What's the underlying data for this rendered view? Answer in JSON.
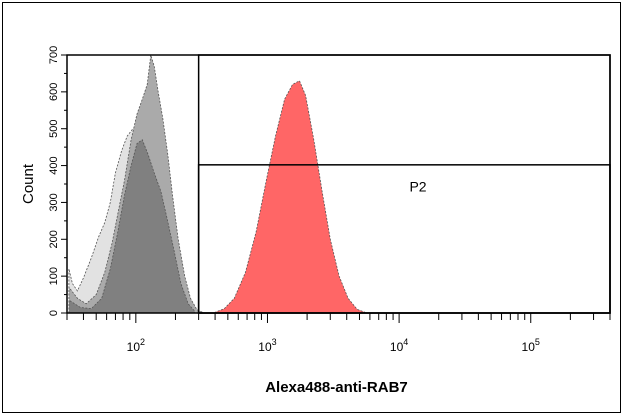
{
  "chart_data": {
    "type": "area",
    "title": "",
    "xlabel": "Alexa488-anti-RAB7",
    "ylabel": "Count",
    "x_scale": "log",
    "xlim": [
      30,
      400000
    ],
    "ylim": [
      0,
      700
    ],
    "x_ticks": [
      {
        "base": "10",
        "exp": "2",
        "value": 100
      },
      {
        "base": "10",
        "exp": "3",
        "value": 1000
      },
      {
        "base": "10",
        "exp": "4",
        "value": 10000
      },
      {
        "base": "10",
        "exp": "5",
        "value": 100000
      }
    ],
    "y_ticks": [
      {
        "label": "0",
        "value": 0
      },
      {
        "label": "100",
        "value": 100
      },
      {
        "label": "200",
        "value": 200
      },
      {
        "label": "300",
        "value": 300
      },
      {
        "label": "400",
        "value": 400
      },
      {
        "label": "500",
        "value": 500
      },
      {
        "label": "600",
        "value": 600
      },
      {
        "label": "700",
        "value": 700
      }
    ],
    "series": [
      {
        "color": "#e2e2e2",
        "points": [
          [
            31,
            120
          ],
          [
            33,
            80
          ],
          [
            36,
            60
          ],
          [
            40,
            95
          ],
          [
            46,
            150
          ],
          [
            52,
            205
          ],
          [
            58,
            245
          ],
          [
            64,
            300
          ],
          [
            70,
            380
          ],
          [
            78,
            440
          ],
          [
            86,
            480
          ],
          [
            95,
            500
          ],
          [
            105,
            505
          ],
          [
            115,
            470
          ],
          [
            125,
            420
          ],
          [
            140,
            360
          ],
          [
            155,
            300
          ],
          [
            170,
            240
          ],
          [
            190,
            170
          ],
          [
            215,
            95
          ],
          [
            240,
            45
          ],
          [
            270,
            15
          ],
          [
            300,
            3
          ]
        ]
      },
      {
        "color": "#aaaaaa",
        "points": [
          [
            31,
            70
          ],
          [
            36,
            40
          ],
          [
            42,
            25
          ],
          [
            50,
            50
          ],
          [
            58,
            110
          ],
          [
            66,
            190
          ],
          [
            74,
            280
          ],
          [
            82,
            360
          ],
          [
            92,
            470
          ],
          [
            102,
            540
          ],
          [
            112,
            580
          ],
          [
            122,
            620
          ],
          [
            130,
            700
          ],
          [
            138,
            670
          ],
          [
            148,
            600
          ],
          [
            160,
            530
          ],
          [
            175,
            430
          ],
          [
            190,
            320
          ],
          [
            210,
            200
          ],
          [
            235,
            100
          ],
          [
            260,
            40
          ],
          [
            290,
            10
          ],
          [
            320,
            2
          ]
        ]
      },
      {
        "color": "#808080",
        "points": [
          [
            31,
            35
          ],
          [
            38,
            15
          ],
          [
            46,
            12
          ],
          [
            55,
            40
          ],
          [
            64,
            120
          ],
          [
            73,
            220
          ],
          [
            82,
            320
          ],
          [
            92,
            400
          ],
          [
            102,
            460
          ],
          [
            112,
            470
          ],
          [
            124,
            430
          ],
          [
            138,
            380
          ],
          [
            155,
            330
          ],
          [
            172,
            260
          ],
          [
            195,
            170
          ],
          [
            220,
            80
          ],
          [
            250,
            25
          ],
          [
            280,
            5
          ]
        ]
      },
      {
        "color": "#ff6666",
        "points": [
          [
            400,
            2
          ],
          [
            470,
            12
          ],
          [
            560,
            40
          ],
          [
            680,
            110
          ],
          [
            820,
            220
          ],
          [
            980,
            360
          ],
          [
            1150,
            480
          ],
          [
            1350,
            580
          ],
          [
            1550,
            620
          ],
          [
            1750,
            630
          ],
          [
            1950,
            590
          ],
          [
            2250,
            470
          ],
          [
            2600,
            330
          ],
          [
            3000,
            200
          ],
          [
            3500,
            100
          ],
          [
            4100,
            40
          ],
          [
            4800,
            10
          ],
          [
            5500,
            2
          ]
        ]
      }
    ],
    "gates": [
      {
        "label": "",
        "x_min": 300,
        "x_max": 400000,
        "y_min": 0,
        "y_max": 700
      },
      {
        "label": "P2",
        "x_min": 300,
        "x_max": 400000,
        "y_min": 0,
        "y_max": 402
      }
    ]
  }
}
